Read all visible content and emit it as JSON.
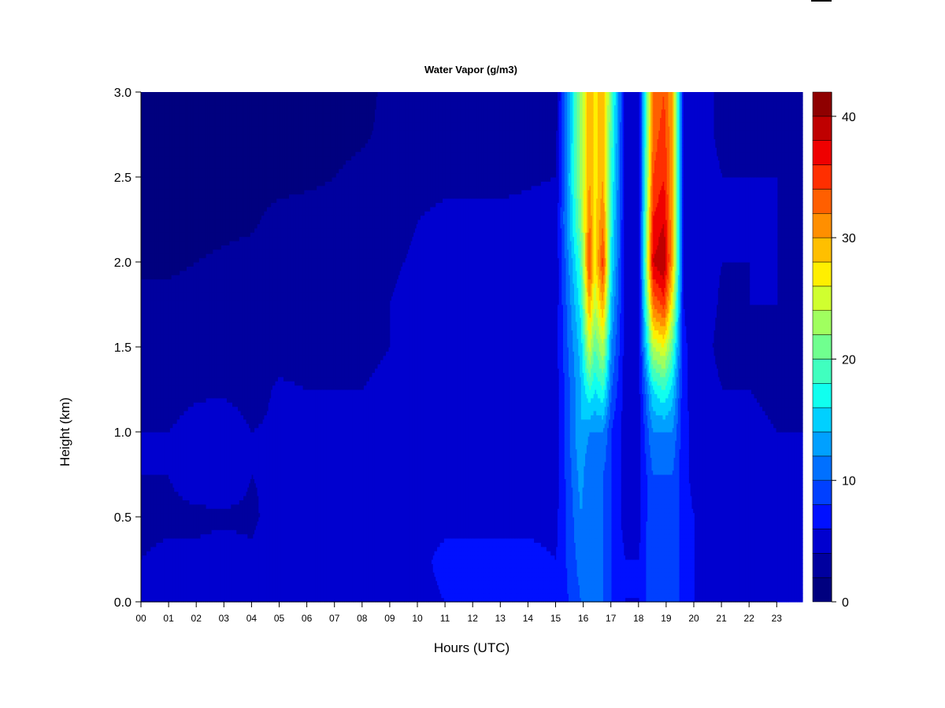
{
  "chart_data": {
    "type": "heatmap",
    "title": "Water Vapor (g/m3)",
    "xlabel": "Hours (UTC)",
    "ylabel": "Height (km)",
    "xlim": [
      0,
      23.9
    ],
    "ylim": [
      0,
      3.0
    ],
    "x_ticks": [
      "00",
      "01",
      "02",
      "03",
      "04",
      "05",
      "06",
      "07",
      "08",
      "09",
      "10",
      "11",
      "12",
      "13",
      "14",
      "15",
      "16",
      "17",
      "18",
      "19",
      "20",
      "21",
      "22",
      "23"
    ],
    "y_ticks": [
      "0.0",
      "0.5",
      "1.0",
      "1.5",
      "2.0",
      "2.5",
      "3.0"
    ],
    "colorbar": {
      "range": [
        0,
        42
      ],
      "ticks": [
        "0",
        "10",
        "20",
        "30",
        "40"
      ],
      "levels": [
        0,
        2,
        4,
        6,
        8,
        10,
        12,
        14,
        16,
        18,
        20,
        22,
        24,
        26,
        28,
        30,
        32,
        34,
        36,
        38,
        40,
        42
      ],
      "colors": [
        "#00007f",
        "#00009f",
        "#0000cf",
        "#0010ff",
        "#0040ff",
        "#0070ff",
        "#00a0ff",
        "#00d0ff",
        "#10ffef",
        "#40ffbf",
        "#70ff8f",
        "#a0ff5f",
        "#d0ff2f",
        "#ffef00",
        "#ffbf00",
        "#ff8f00",
        "#ff5f00",
        "#ff2f00",
        "#ef0000",
        "#bf0000",
        "#8f0000"
      ]
    },
    "heights_km": [
      0.0,
      0.25,
      0.5,
      0.75,
      1.0,
      1.25,
      1.5,
      1.75,
      2.0,
      2.25,
      2.5,
      2.75,
      3.0
    ],
    "columns": [
      {
        "hour": 0.0,
        "values": [
          4.5,
          4.0,
          3.8,
          4.0,
          4.0,
          3.5,
          3.2,
          2.8,
          1.5,
          1.0,
          0.8,
          0.8,
          0.8
        ]
      },
      {
        "hour": 1.0,
        "values": [
          4.5,
          4.2,
          3.8,
          4.0,
          4.0,
          3.5,
          3.2,
          2.8,
          1.5,
          1.0,
          0.8,
          0.8,
          0.8
        ]
      },
      {
        "hour": 2.0,
        "values": [
          4.5,
          4.2,
          3.8,
          4.5,
          4.5,
          3.8,
          3.2,
          3.0,
          2.0,
          1.0,
          0.8,
          0.8,
          0.8
        ]
      },
      {
        "hour": 3.0,
        "values": [
          4.5,
          4.5,
          3.8,
          4.8,
          4.8,
          3.8,
          3.2,
          3.0,
          2.5,
          1.2,
          0.8,
          0.8,
          0.8
        ]
      },
      {
        "hour": 4.0,
        "values": [
          4.5,
          4.2,
          3.8,
          4.0,
          4.0,
          3.5,
          3.2,
          3.0,
          3.0,
          1.5,
          0.8,
          0.8,
          0.8
        ]
      },
      {
        "hour": 5.0,
        "values": [
          5.0,
          5.0,
          4.5,
          4.2,
          4.2,
          4.2,
          3.5,
          3.2,
          3.2,
          3.0,
          1.0,
          0.8,
          0.8
        ]
      },
      {
        "hour": 6.0,
        "values": [
          5.0,
          5.0,
          4.5,
          4.5,
          4.2,
          4.0,
          3.5,
          3.2,
          3.2,
          3.0,
          1.5,
          0.8,
          0.8
        ]
      },
      {
        "hour": 7.0,
        "values": [
          5.0,
          5.0,
          4.5,
          4.5,
          4.2,
          4.0,
          3.5,
          3.2,
          3.2,
          3.0,
          2.0,
          1.0,
          0.8
        ]
      },
      {
        "hour": 8.0,
        "values": [
          5.2,
          5.0,
          4.5,
          4.5,
          4.5,
          4.0,
          3.8,
          3.5,
          3.2,
          3.0,
          3.0,
          1.5,
          0.8
        ]
      },
      {
        "hour": 9.0,
        "values": [
          5.2,
          5.0,
          4.8,
          4.8,
          4.5,
          4.2,
          4.0,
          4.0,
          3.8,
          3.5,
          3.2,
          3.0,
          3.0
        ]
      },
      {
        "hour": 10.0,
        "values": [
          5.5,
          5.5,
          5.0,
          5.0,
          5.0,
          4.8,
          4.5,
          4.5,
          4.2,
          4.0,
          3.2,
          3.0,
          3.0
        ]
      },
      {
        "hour": 11.0,
        "values": [
          6.0,
          6.5,
          5.5,
          5.2,
          5.0,
          4.8,
          5.0,
          4.5,
          4.5,
          4.5,
          3.5,
          3.2,
          3.0
        ]
      },
      {
        "hour": 12.0,
        "values": [
          6.5,
          6.5,
          5.5,
          5.2,
          5.0,
          4.8,
          5.2,
          4.5,
          4.5,
          4.5,
          3.5,
          3.2,
          3.2
        ]
      },
      {
        "hour": 13.0,
        "values": [
          6.5,
          6.5,
          5.5,
          5.2,
          5.0,
          4.8,
          5.2,
          4.5,
          4.5,
          4.5,
          3.5,
          3.2,
          3.2
        ]
      },
      {
        "hour": 14.0,
        "values": [
          6.5,
          6.5,
          5.5,
          5.2,
          5.0,
          5.0,
          5.2,
          4.8,
          4.5,
          4.5,
          3.8,
          3.2,
          3.2
        ]
      },
      {
        "hour": 15.0,
        "values": [
          6.0,
          6.0,
          5.5,
          5.2,
          5.2,
          5.0,
          5.5,
          5.0,
          4.8,
          4.8,
          4.0,
          3.5,
          3.2
        ]
      },
      {
        "hour": 15.9,
        "values": [
          10,
          11,
          12,
          13,
          14,
          14,
          15,
          17,
          19,
          22,
          23,
          23,
          23
        ]
      },
      {
        "hour": 16.2,
        "values": [
          10,
          10,
          10,
          10,
          12,
          18,
          25,
          30,
          35,
          32,
          30,
          30,
          30
        ]
      },
      {
        "hour": 16.4,
        "values": [
          10,
          10,
          10,
          10,
          12,
          16,
          20,
          24,
          27,
          27,
          27,
          27,
          27
        ]
      },
      {
        "hour": 16.7,
        "values": [
          10,
          10,
          10,
          10,
          12,
          18,
          24,
          30,
          35,
          32,
          30,
          30,
          30
        ]
      },
      {
        "hour": 17.0,
        "values": [
          8,
          8,
          8,
          8,
          8,
          10,
          12,
          14,
          16,
          17,
          18,
          19,
          20
        ]
      },
      {
        "hour": 17.5,
        "values": [
          6,
          6,
          5,
          5,
          5,
          5,
          5,
          5,
          5,
          5,
          5,
          5,
          5
        ]
      },
      {
        "hour": 18.0,
        "values": [
          6,
          6,
          5.5,
          5.5,
          5.5,
          5.5,
          5.5,
          5.5,
          5.5,
          5.5,
          5.5,
          5.5,
          5.5
        ]
      },
      {
        "hour": 18.5,
        "values": [
          10,
          10,
          10,
          10,
          12,
          16,
          24,
          32,
          38,
          36,
          34,
          33,
          32
        ]
      },
      {
        "hour": 18.9,
        "values": [
          10,
          9,
          8,
          10,
          12,
          18,
          26,
          35,
          40,
          38,
          36,
          35,
          34
        ]
      },
      {
        "hour": 19.2,
        "values": [
          10,
          10,
          10,
          10,
          12,
          15,
          20,
          26,
          30,
          30,
          30,
          30,
          30
        ]
      },
      {
        "hour": 19.6,
        "values": [
          7,
          7,
          6.5,
          6.5,
          6.5,
          6.5,
          6.5,
          6,
          6,
          6,
          6,
          6,
          6
        ]
      },
      {
        "hour": 20.0,
        "values": [
          6,
          6,
          6,
          5.5,
          5.5,
          5.2,
          5,
          5,
          4.5,
          4.5,
          4.5,
          4.5,
          4.5
        ]
      },
      {
        "hour": 21.0,
        "values": [
          5,
          5,
          4.5,
          4.5,
          4.2,
          4.0,
          3.5,
          3.8,
          4.0,
          4.0,
          4.0,
          3.8,
          3.8
        ]
      },
      {
        "hour": 22.0,
        "values": [
          5,
          5,
          4.5,
          4.5,
          4.2,
          4.0,
          3.8,
          4.0,
          4.0,
          4.0,
          4.0,
          3.8,
          3.8
        ]
      },
      {
        "hour": 23.0,
        "values": [
          5,
          4.5,
          4.2,
          4.2,
          4.0,
          3.8,
          3.8,
          4.0,
          4.0,
          4.0,
          4.0,
          3.8,
          3.8
        ]
      },
      {
        "hour": 23.9,
        "values": [
          4.5,
          4.2,
          4.0,
          4.0,
          4.0,
          3.8,
          3.8,
          3.8,
          3.8,
          3.8,
          3.8,
          3.8,
          3.8
        ]
      }
    ]
  }
}
